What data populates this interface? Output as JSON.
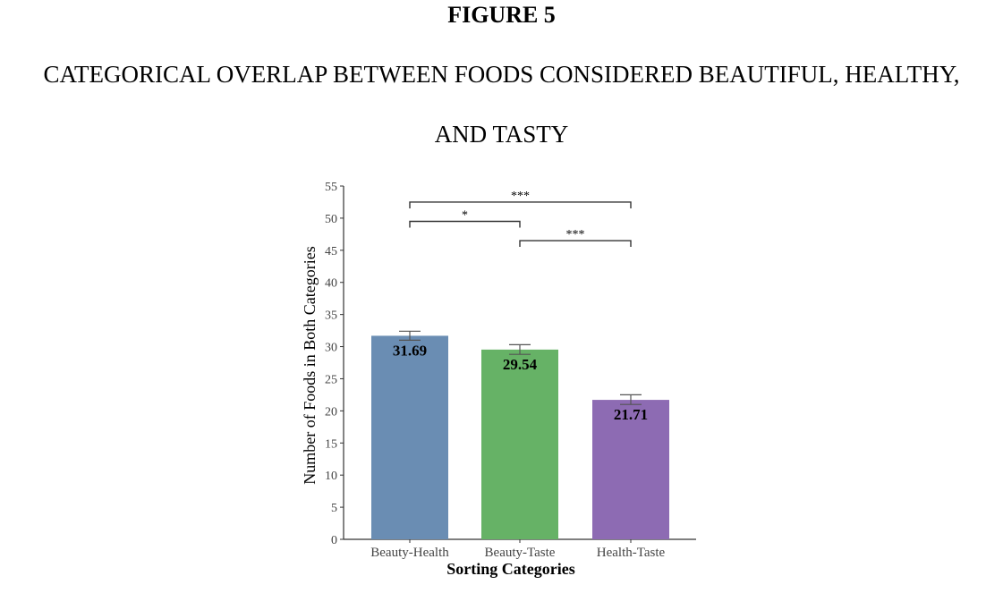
{
  "figure": {
    "label": "FIGURE 5",
    "title_line1": "CATEGORICAL OVERLAP BETWEEN FOODS CONSIDERED BEAUTIFUL, HEALTHY,",
    "title_line2": "AND TASTY"
  },
  "chart_data": {
    "type": "bar",
    "categories": [
      "Beauty-Health",
      "Beauty-Taste",
      "Health-Taste"
    ],
    "values": [
      31.69,
      29.54,
      21.71
    ],
    "value_labels": [
      "31.69",
      "29.54",
      "21.71"
    ],
    "error_upper": [
      32.4,
      30.3,
      22.5
    ],
    "error_lower": [
      31.0,
      28.8,
      21.0
    ],
    "colors": [
      "#6a8db3",
      "#66b266",
      "#8d6bb3"
    ],
    "xlabel": "Sorting Categories",
    "ylabel": "Number of Foods in Both Categories",
    "ylim": [
      0,
      55
    ],
    "yticks": [
      0,
      5,
      10,
      15,
      20,
      25,
      30,
      35,
      40,
      45,
      50,
      55
    ],
    "grid": false,
    "significance": [
      {
        "from": 0,
        "to": 2,
        "label": "***",
        "y": 52.5
      },
      {
        "from": 0,
        "to": 1,
        "label": "*",
        "y": 49.5
      },
      {
        "from": 1,
        "to": 2,
        "label": "***",
        "y": 46.5
      }
    ]
  }
}
